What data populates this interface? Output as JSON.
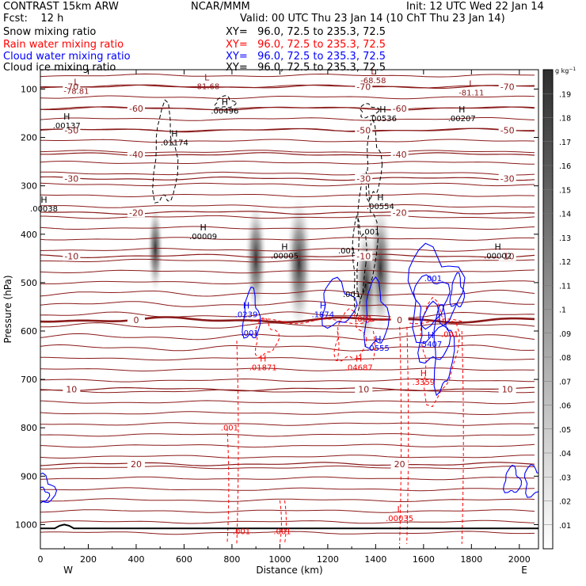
{
  "header": {
    "model": "CONTRAST 15km ARW",
    "org": "NCAR/MMM",
    "init": "Init: 12 UTC Wed 22 Jan 14",
    "fcst": "Fcst:    12 h",
    "valid": "Valid: 00 UTC Thu 23 Jan 14 (10 ChT Thu 23 Jan 14)",
    "fields": [
      {
        "name": "Snow mixing ratio",
        "xy": "XY=   96.0, 72.5 to 235.3, 72.5",
        "color": "#000000"
      },
      {
        "name": "Rain water mixing ratio",
        "xy": "XY=   96.0, 72.5 to 235.3, 72.5",
        "color": "#ff0000"
      },
      {
        "name": "Cloud water mixing ratio",
        "xy": "XY=   96.0, 72.5 to 235.3, 72.5",
        "color": "#0000ff"
      },
      {
        "name": "Cloud ice mixing ratio",
        "xy": "XY=   96.0, 72.5 to 235.3, 72.5",
        "color": "#000000"
      }
    ]
  },
  "chart_data": {
    "type": "contour-cross-section",
    "xlabel": "Distance (km)",
    "ylabel": "Pressure (hPa)",
    "xlim": [
      0,
      2080
    ],
    "ylim": [
      1050,
      60
    ],
    "x_ticks": [
      0,
      200,
      400,
      600,
      800,
      1000,
      1200,
      1400,
      1600,
      1800,
      2000
    ],
    "y_ticks": [
      100,
      200,
      300,
      400,
      500,
      600,
      700,
      800,
      900,
      1000
    ],
    "direction_left": "W",
    "direction_right": "E",
    "colorbar": {
      "unit": "g kg",
      "unit_exp": "−1",
      "ticks": [
        ".01",
        ".02",
        ".03",
        ".04",
        ".05",
        ".06",
        ".07",
        ".08",
        ".09",
        ".1",
        ".11",
        ".12",
        ".13",
        ".14",
        ".15",
        ".16",
        ".17",
        ".18",
        ".19"
      ]
    },
    "temperature_contours": [
      {
        "label": "-70",
        "p": 95
      },
      {
        "label": "-60",
        "p": 140
      },
      {
        "label": "-50",
        "p": 185
      },
      {
        "label": "-40",
        "p": 235
      },
      {
        "label": "-30",
        "p": 285
      },
      {
        "label": "-20",
        "p": 355
      },
      {
        "label": "-10",
        "p": 445
      },
      {
        "label": "0",
        "p": 577
      },
      {
        "label": "10",
        "p": 720
      },
      {
        "label": "20",
        "p": 875
      }
    ],
    "snow_cores": [
      {
        "x": 1080,
        "p": 460,
        "max": 0.19
      },
      {
        "x": 900,
        "p": 450,
        "max": 0.15
      },
      {
        "x": 1420,
        "p": 470,
        "max": 0.18
      },
      {
        "x": 1360,
        "p": 505,
        "max": 0.16
      },
      {
        "x": 480,
        "p": 430,
        "max": 0.1
      }
    ],
    "annotations": [
      {
        "text": "L",
        "sub": "-78.81",
        "x": 150,
        "p": 92,
        "color": "#8b1a1a"
      },
      {
        "text": "L",
        "sub": "-81.68",
        "x": 695,
        "p": 82,
        "color": "#8b1a1a"
      },
      {
        "text": "L",
        "sub": "-68.58",
        "x": 1390,
        "p": 70,
        "color": "#8b1a1a"
      },
      {
        "text": "L",
        "sub": "-81.11",
        "x": 1800,
        "p": 95,
        "color": "#8b1a1a"
      },
      {
        "text": "H",
        "sub": ".00496",
        "x": 770,
        "p": 133,
        "color": "#000000"
      },
      {
        "text": "H",
        "sub": ".00536",
        "x": 1430,
        "p": 148,
        "color": "#000000"
      },
      {
        "text": "H",
        "sub": ".00207",
        "x": 1760,
        "p": 148,
        "color": "#000000"
      },
      {
        "text": "H",
        "sub": ".00137",
        "x": 110,
        "p": 163,
        "color": "#000000"
      },
      {
        "text": "H",
        "sub": ".01174",
        "x": 560,
        "p": 198,
        "color": "#000000"
      },
      {
        "text": "H",
        "sub": ".00038",
        "x": 15,
        "p": 335,
        "color": "#000000"
      },
      {
        "text": "H",
        "sub": ".00554",
        "x": 1420,
        "p": 330,
        "color": "#000000"
      },
      {
        "text": "H",
        "sub": ".00009",
        "x": 680,
        "p": 392,
        "color": "#000000"
      },
      {
        "text": "H",
        "sub": ".00005",
        "x": 1020,
        "p": 432,
        "color": "#000000"
      },
      {
        "text": "H",
        "sub": ".00002",
        "x": 1910,
        "p": 432,
        "color": "#000000"
      },
      {
        "text": "H",
        "sub": ".0239",
        "x": 860,
        "p": 553,
        "color": "#0000ff"
      },
      {
        "text": "H",
        "sub": ".1874",
        "x": 1180,
        "p": 553,
        "color": "#0000ff"
      },
      {
        "text": "H",
        "sub": ".0555",
        "x": 1410,
        "p": 623,
        "color": "#0000ff"
      },
      {
        "text": "H",
        "sub": ".5407",
        "x": 1630,
        "p": 615,
        "color": "#0000ff"
      },
      {
        "text": "H",
        "sub": ".01871",
        "x": 930,
        "p": 663,
        "color": "#ff0000"
      },
      {
        "text": "H",
        "sub": ".04687",
        "x": 1330,
        "p": 663,
        "color": "#ff0000"
      },
      {
        "text": "H",
        "sub": ".3359",
        "x": 1600,
        "p": 693,
        "color": "#ff0000"
      },
      {
        "text": "L",
        "sub": ".00035",
        "x": 1500,
        "p": 975,
        "color": "#ff0000"
      }
    ],
    "contour_labels": [
      {
        "text": ".001",
        "x": 1380,
        "p": 400,
        "color": "#000000"
      },
      {
        "text": ".001",
        "x": 1280,
        "p": 440,
        "color": "#000000"
      },
      {
        "text": ".001",
        "x": 1300,
        "p": 530,
        "color": "#000000"
      },
      {
        "text": ".001",
        "x": 1640,
        "p": 497,
        "color": "#0000ff"
      },
      {
        "text": ".001",
        "x": 875,
        "p": 610,
        "color": "#0000ff"
      },
      {
        "text": ".001",
        "x": 1350,
        "p": 580,
        "color": "#ff0000"
      },
      {
        "text": ".001",
        "x": 1710,
        "p": 612,
        "color": "#ff0000"
      },
      {
        "text": ".001",
        "x": 790,
        "p": 805,
        "color": "#ff0000"
      },
      {
        "text": ".001",
        "x": 840,
        "p": 1020,
        "color": "#ff0000"
      },
      {
        "text": ".001",
        "x": 1010,
        "p": 1020,
        "color": "#ff0000"
      }
    ]
  }
}
